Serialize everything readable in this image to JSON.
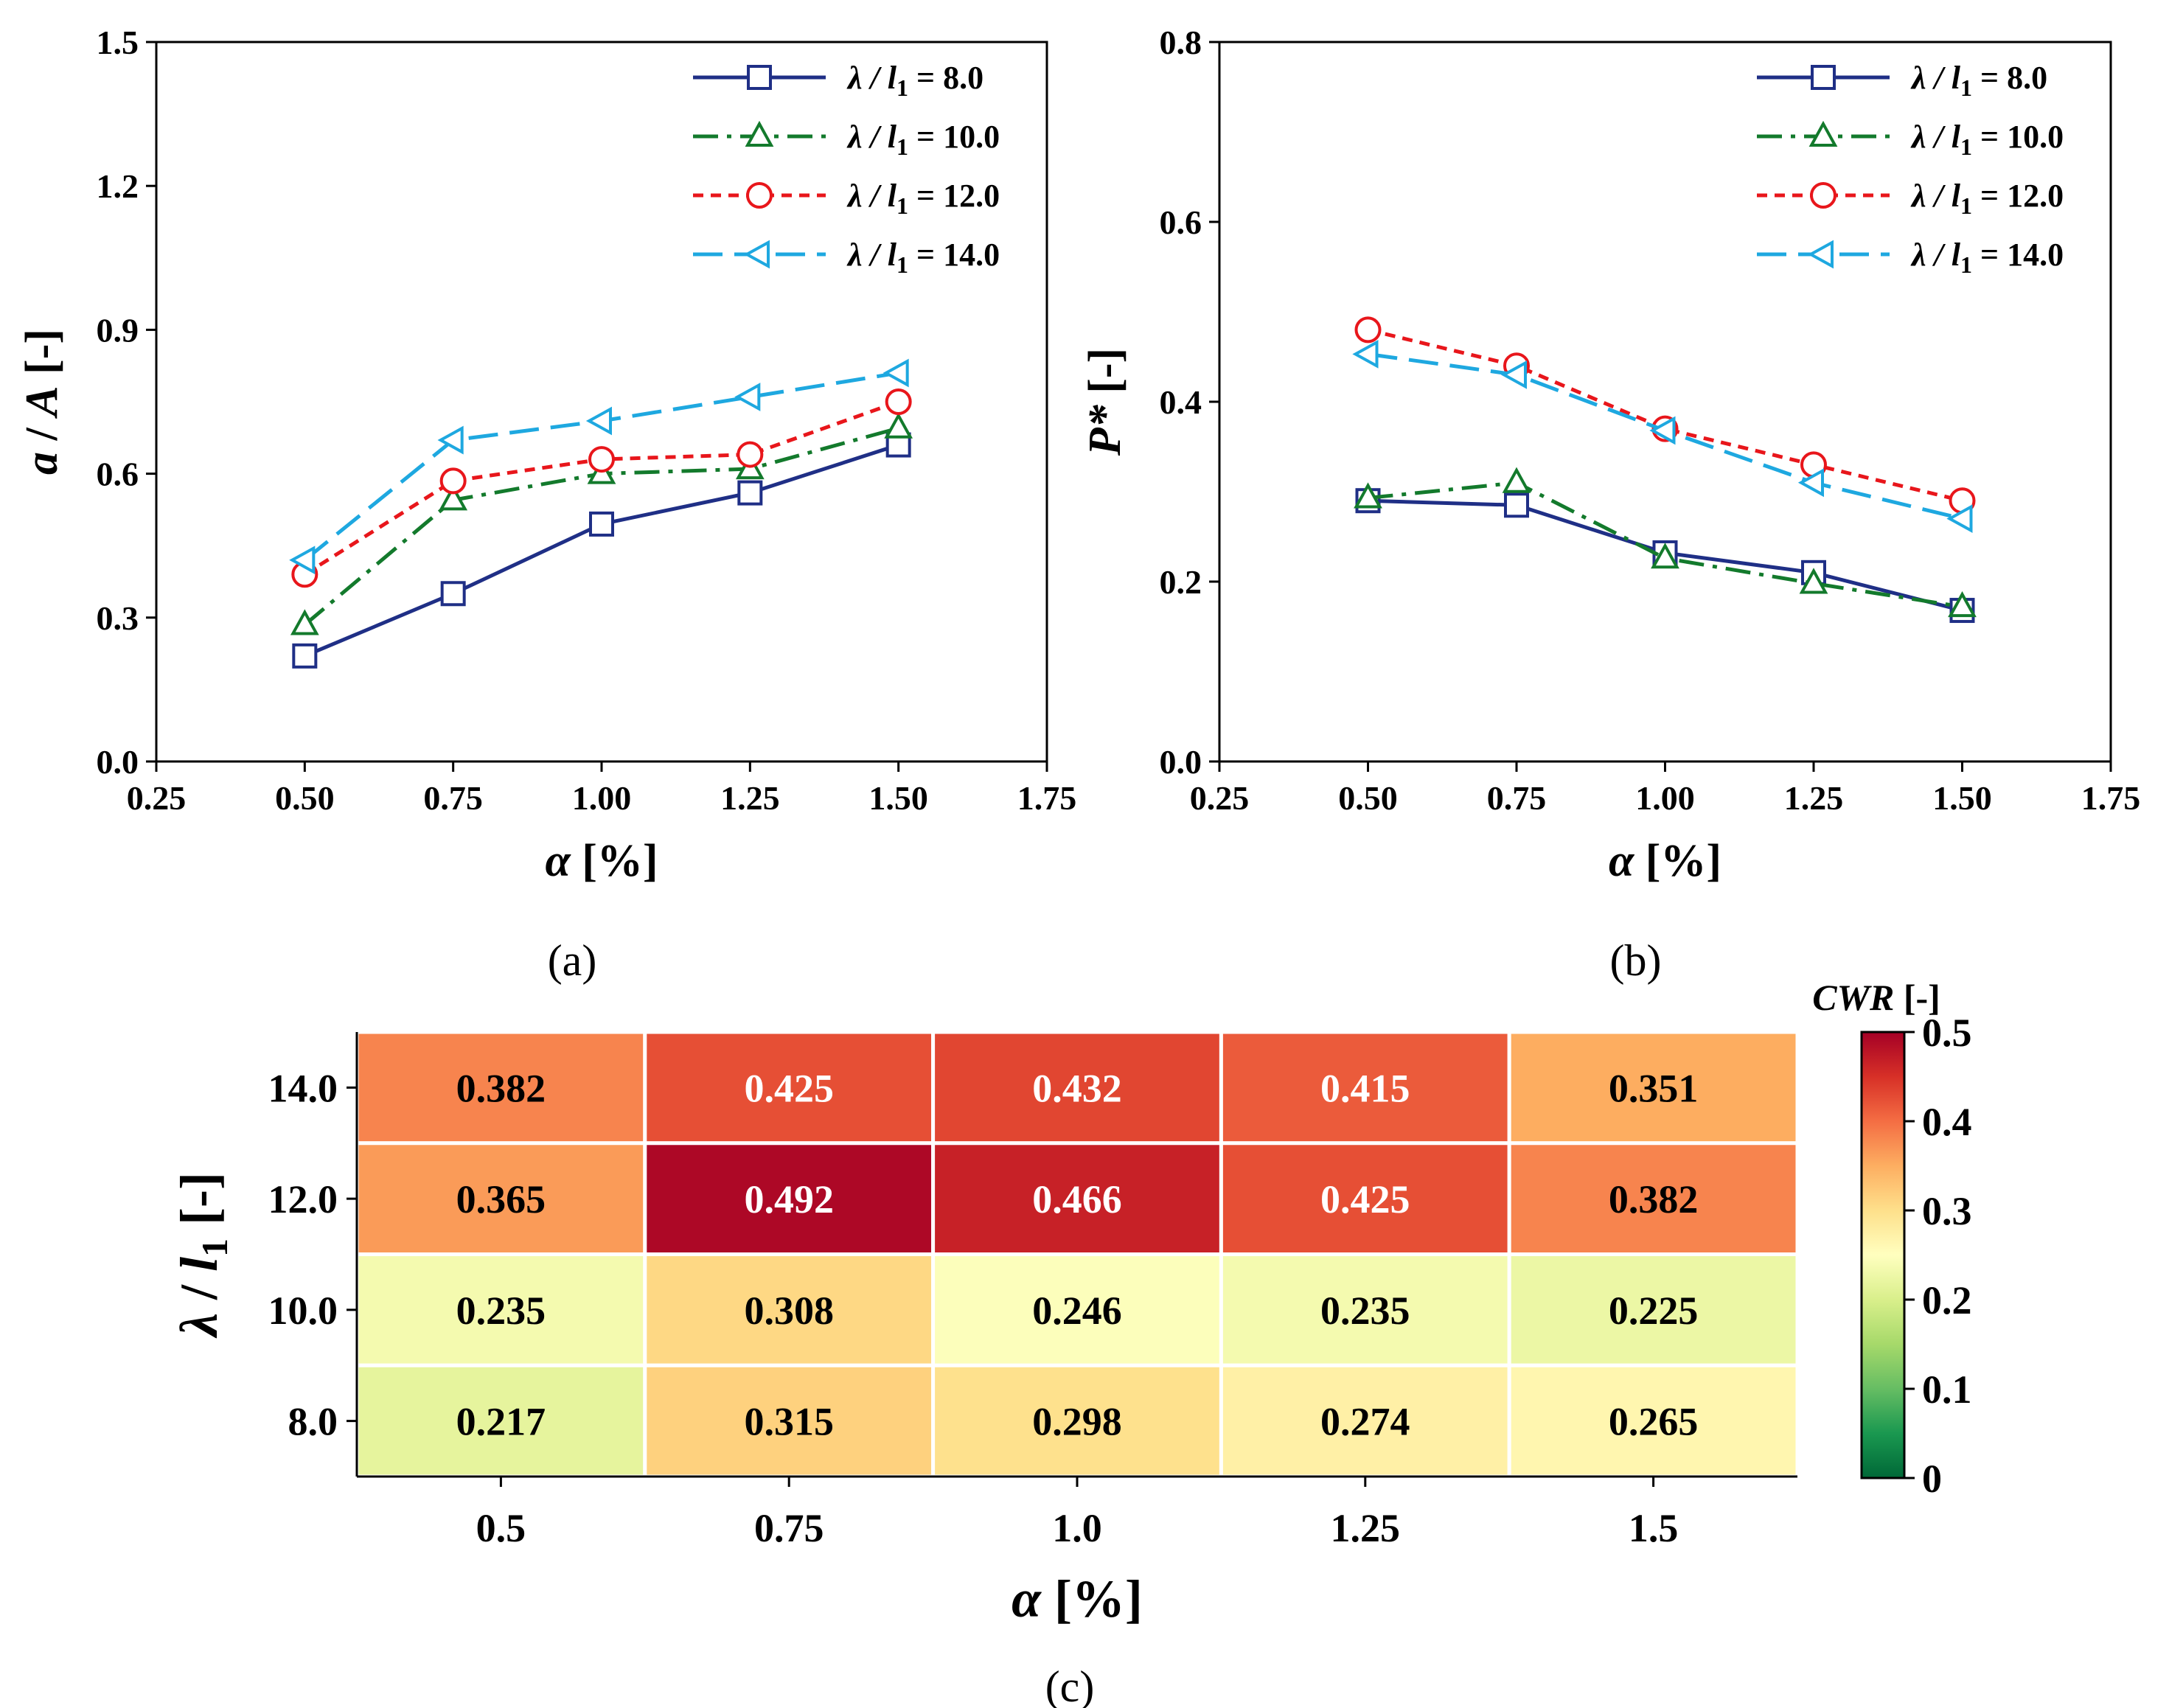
{
  "chart_data": [
    {
      "type": "line",
      "panel_label": "(a)",
      "xlabel_symbol": "α",
      "xlabel_unit": " [%]",
      "ylabel_a": "a",
      "ylabel_sep": " / ",
      "ylabel_b": "A",
      "ylabel_unit": " [-]",
      "xlim": [
        0.25,
        1.75
      ],
      "ylim": [
        0.0,
        1.5
      ],
      "xticks": [
        "0.25",
        "0.50",
        "0.75",
        "1.00",
        "1.25",
        "1.50",
        "1.75"
      ],
      "yticks": [
        "0.0",
        "0.3",
        "0.6",
        "0.9",
        "1.2",
        "1.5"
      ],
      "x": [
        0.5,
        0.75,
        1.0,
        1.25,
        1.5
      ],
      "legend_position": "top-right",
      "series": [
        {
          "name": "λ / l₁ = 8.0",
          "lam": "λ",
          "sep": " / ",
          "l": "l",
          "sub": "1",
          "eq": " = 8.0",
          "values": [
            0.22,
            0.35,
            0.495,
            0.56,
            0.66
          ],
          "color": "#1f2f86",
          "marker": "square",
          "dash": "none"
        },
        {
          "name": "λ / l₁ = 10.0",
          "lam": "λ",
          "sep": " / ",
          "l": "l",
          "sub": "1",
          "eq": " = 10.0",
          "values": [
            0.285,
            0.545,
            0.6,
            0.61,
            0.695
          ],
          "color": "#137a2c",
          "marker": "triangle-up",
          "dash": "dashdot"
        },
        {
          "name": "λ / l₁ = 12.0",
          "lam": "λ",
          "sep": " / ",
          "l": "l",
          "sub": "1",
          "eq": " = 12.0",
          "values": [
            0.39,
            0.585,
            0.63,
            0.64,
            0.75
          ],
          "color": "#e8161b",
          "marker": "circle",
          "dash": "short"
        },
        {
          "name": "λ / l₁ = 14.0",
          "lam": "λ",
          "sep": " / ",
          "l": "l",
          "sub": "1",
          "eq": " = 14.0",
          "values": [
            0.42,
            0.67,
            0.71,
            0.76,
            0.81
          ],
          "color": "#1ea8e0",
          "marker": "triangle-left",
          "dash": "long"
        }
      ]
    },
    {
      "type": "line",
      "panel_label": "(b)",
      "xlabel_symbol": "α",
      "xlabel_unit": " [%]",
      "ylabel_a": "P*",
      "ylabel_unit": " [-]",
      "xlim": [
        0.25,
        1.75
      ],
      "ylim": [
        0.0,
        0.8
      ],
      "xticks": [
        "0.25",
        "0.50",
        "0.75",
        "1.00",
        "1.25",
        "1.50",
        "1.75"
      ],
      "yticks": [
        "0.0",
        "0.2",
        "0.4",
        "0.6",
        "0.8"
      ],
      "x": [
        0.5,
        0.75,
        1.0,
        1.25,
        1.5
      ],
      "legend_position": "top-right",
      "series": [
        {
          "name": "λ / l₁ = 8.0",
          "lam": "λ",
          "sep": " / ",
          "l": "l",
          "sub": "1",
          "eq": " = 8.0",
          "values": [
            0.29,
            0.285,
            0.232,
            0.21,
            0.168
          ],
          "color": "#1f2f86",
          "marker": "square",
          "dash": "none"
        },
        {
          "name": "λ / l₁ = 10.0",
          "lam": "λ",
          "sep": " / ",
          "l": "l",
          "sub": "1",
          "eq": " = 10.0",
          "values": [
            0.293,
            0.31,
            0.226,
            0.198,
            0.172
          ],
          "color": "#137a2c",
          "marker": "triangle-up",
          "dash": "dashdot"
        },
        {
          "name": "λ / l₁ = 12.0",
          "lam": "λ",
          "sep": " / ",
          "l": "l",
          "sub": "1",
          "eq": " = 12.0",
          "values": [
            0.48,
            0.44,
            0.37,
            0.33,
            0.29
          ],
          "color": "#e8161b",
          "marker": "circle",
          "dash": "short"
        },
        {
          "name": "λ / l₁ = 14.0",
          "lam": "λ",
          "sep": " / ",
          "l": "l",
          "sub": "1",
          "eq": " = 14.0",
          "values": [
            0.453,
            0.43,
            0.368,
            0.31,
            0.27
          ],
          "color": "#1ea8e0",
          "marker": "triangle-left",
          "dash": "long"
        }
      ]
    },
    {
      "type": "heatmap",
      "panel_label": "(c)",
      "xlabel_symbol": "α",
      "xlabel_unit": " [%]",
      "ylabel_lam": "λ",
      "ylabel_sep": " / ",
      "ylabel_l": "l",
      "ylabel_sub": "1",
      "ylabel_unit": " [-]",
      "x_categories": [
        "0.5",
        "0.75",
        "1.0",
        "1.25",
        "1.5"
      ],
      "y_categories": [
        "14.0",
        "12.0",
        "10.0",
        "8.0"
      ],
      "values": [
        [
          0.382,
          0.425,
          0.432,
          0.415,
          0.351
        ],
        [
          0.365,
          0.492,
          0.466,
          0.425,
          0.382
        ],
        [
          0.235,
          0.308,
          0.246,
          0.235,
          0.225
        ],
        [
          0.217,
          0.315,
          0.298,
          0.274,
          0.265
        ]
      ],
      "colorbar_title_a": "CWR",
      "colorbar_title_b": " [-]",
      "colorbar_range": [
        0,
        0.5
      ],
      "colorbar_ticks": [
        "0",
        "0.1",
        "0.2",
        "0.3",
        "0.4",
        "0.5"
      ],
      "colormap": "RdYlGn_r"
    }
  ]
}
